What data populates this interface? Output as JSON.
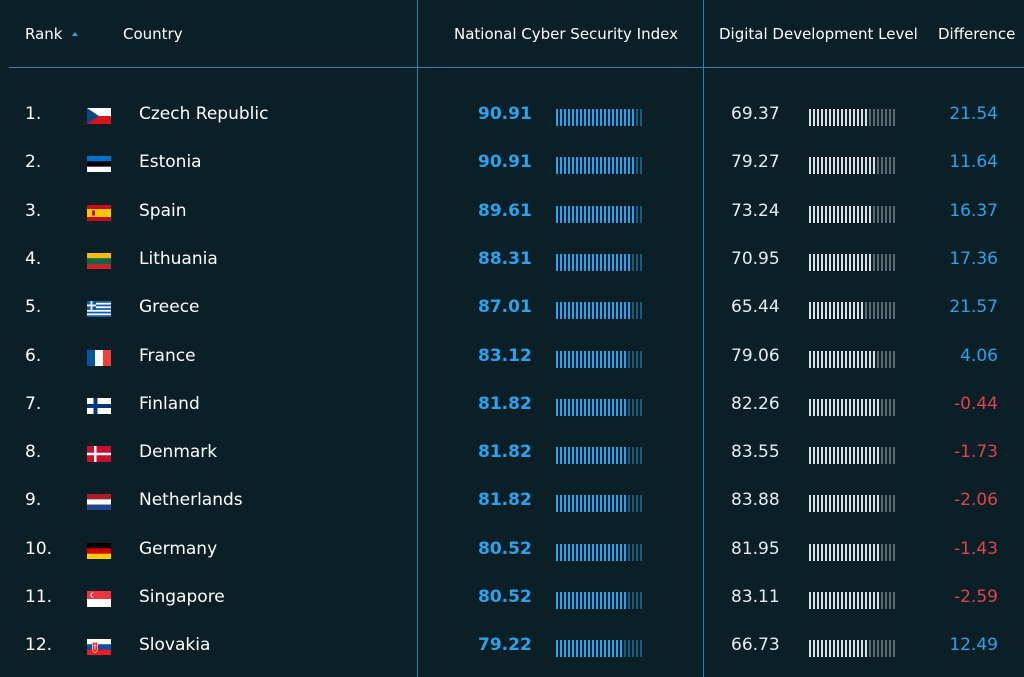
{
  "header": {
    "rank": "Rank",
    "country": "Country",
    "nsci": "National Cyber Security Index",
    "ddl": "Digital Development Level",
    "difference": "Difference"
  },
  "colors": {
    "accent": "#2aa3ef",
    "negative": "#e0424f",
    "background": "#0a1f26"
  },
  "rows": [
    {
      "rank": "1.",
      "country": "Czech Republic",
      "flag": "flag-czech-republic-icon",
      "nsci": "90.91",
      "ddl": "69.37",
      "diff": "21.54",
      "neg": false
    },
    {
      "rank": "2.",
      "country": "Estonia",
      "flag": "flag-estonia-icon",
      "nsci": "90.91",
      "ddl": "79.27",
      "diff": "11.64",
      "neg": false
    },
    {
      "rank": "3.",
      "country": "Spain",
      "flag": "flag-spain-icon",
      "nsci": "89.61",
      "ddl": "73.24",
      "diff": "16.37",
      "neg": false
    },
    {
      "rank": "4.",
      "country": "Lithuania",
      "flag": "flag-lithuania-icon",
      "nsci": "88.31",
      "ddl": "70.95",
      "diff": "17.36",
      "neg": false
    },
    {
      "rank": "5.",
      "country": "Greece",
      "flag": "flag-greece-icon",
      "nsci": "87.01",
      "ddl": "65.44",
      "diff": "21.57",
      "neg": false
    },
    {
      "rank": "6.",
      "country": "France",
      "flag": "flag-france-icon",
      "nsci": "83.12",
      "ddl": "79.06",
      "diff": "4.06",
      "neg": false
    },
    {
      "rank": "7.",
      "country": "Finland",
      "flag": "flag-finland-icon",
      "nsci": "81.82",
      "ddl": "82.26",
      "diff": "-0.44",
      "neg": true
    },
    {
      "rank": "8.",
      "country": "Denmark",
      "flag": "flag-denmark-icon",
      "nsci": "81.82",
      "ddl": "83.55",
      "diff": "-1.73",
      "neg": true
    },
    {
      "rank": "9.",
      "country": "Netherlands",
      "flag": "flag-netherlands-icon",
      "nsci": "81.82",
      "ddl": "83.88",
      "diff": "-2.06",
      "neg": true
    },
    {
      "rank": "10.",
      "country": "Germany",
      "flag": "flag-germany-icon",
      "nsci": "80.52",
      "ddl": "81.95",
      "diff": "-1.43",
      "neg": true
    },
    {
      "rank": "11.",
      "country": "Singapore",
      "flag": "flag-singapore-icon",
      "nsci": "80.52",
      "ddl": "83.11",
      "diff": "-2.59",
      "neg": true
    },
    {
      "rank": "12.",
      "country": "Slovakia",
      "flag": "flag-slovakia-icon",
      "nsci": "79.22",
      "ddl": "66.73",
      "diff": "12.49",
      "neg": false
    }
  ]
}
